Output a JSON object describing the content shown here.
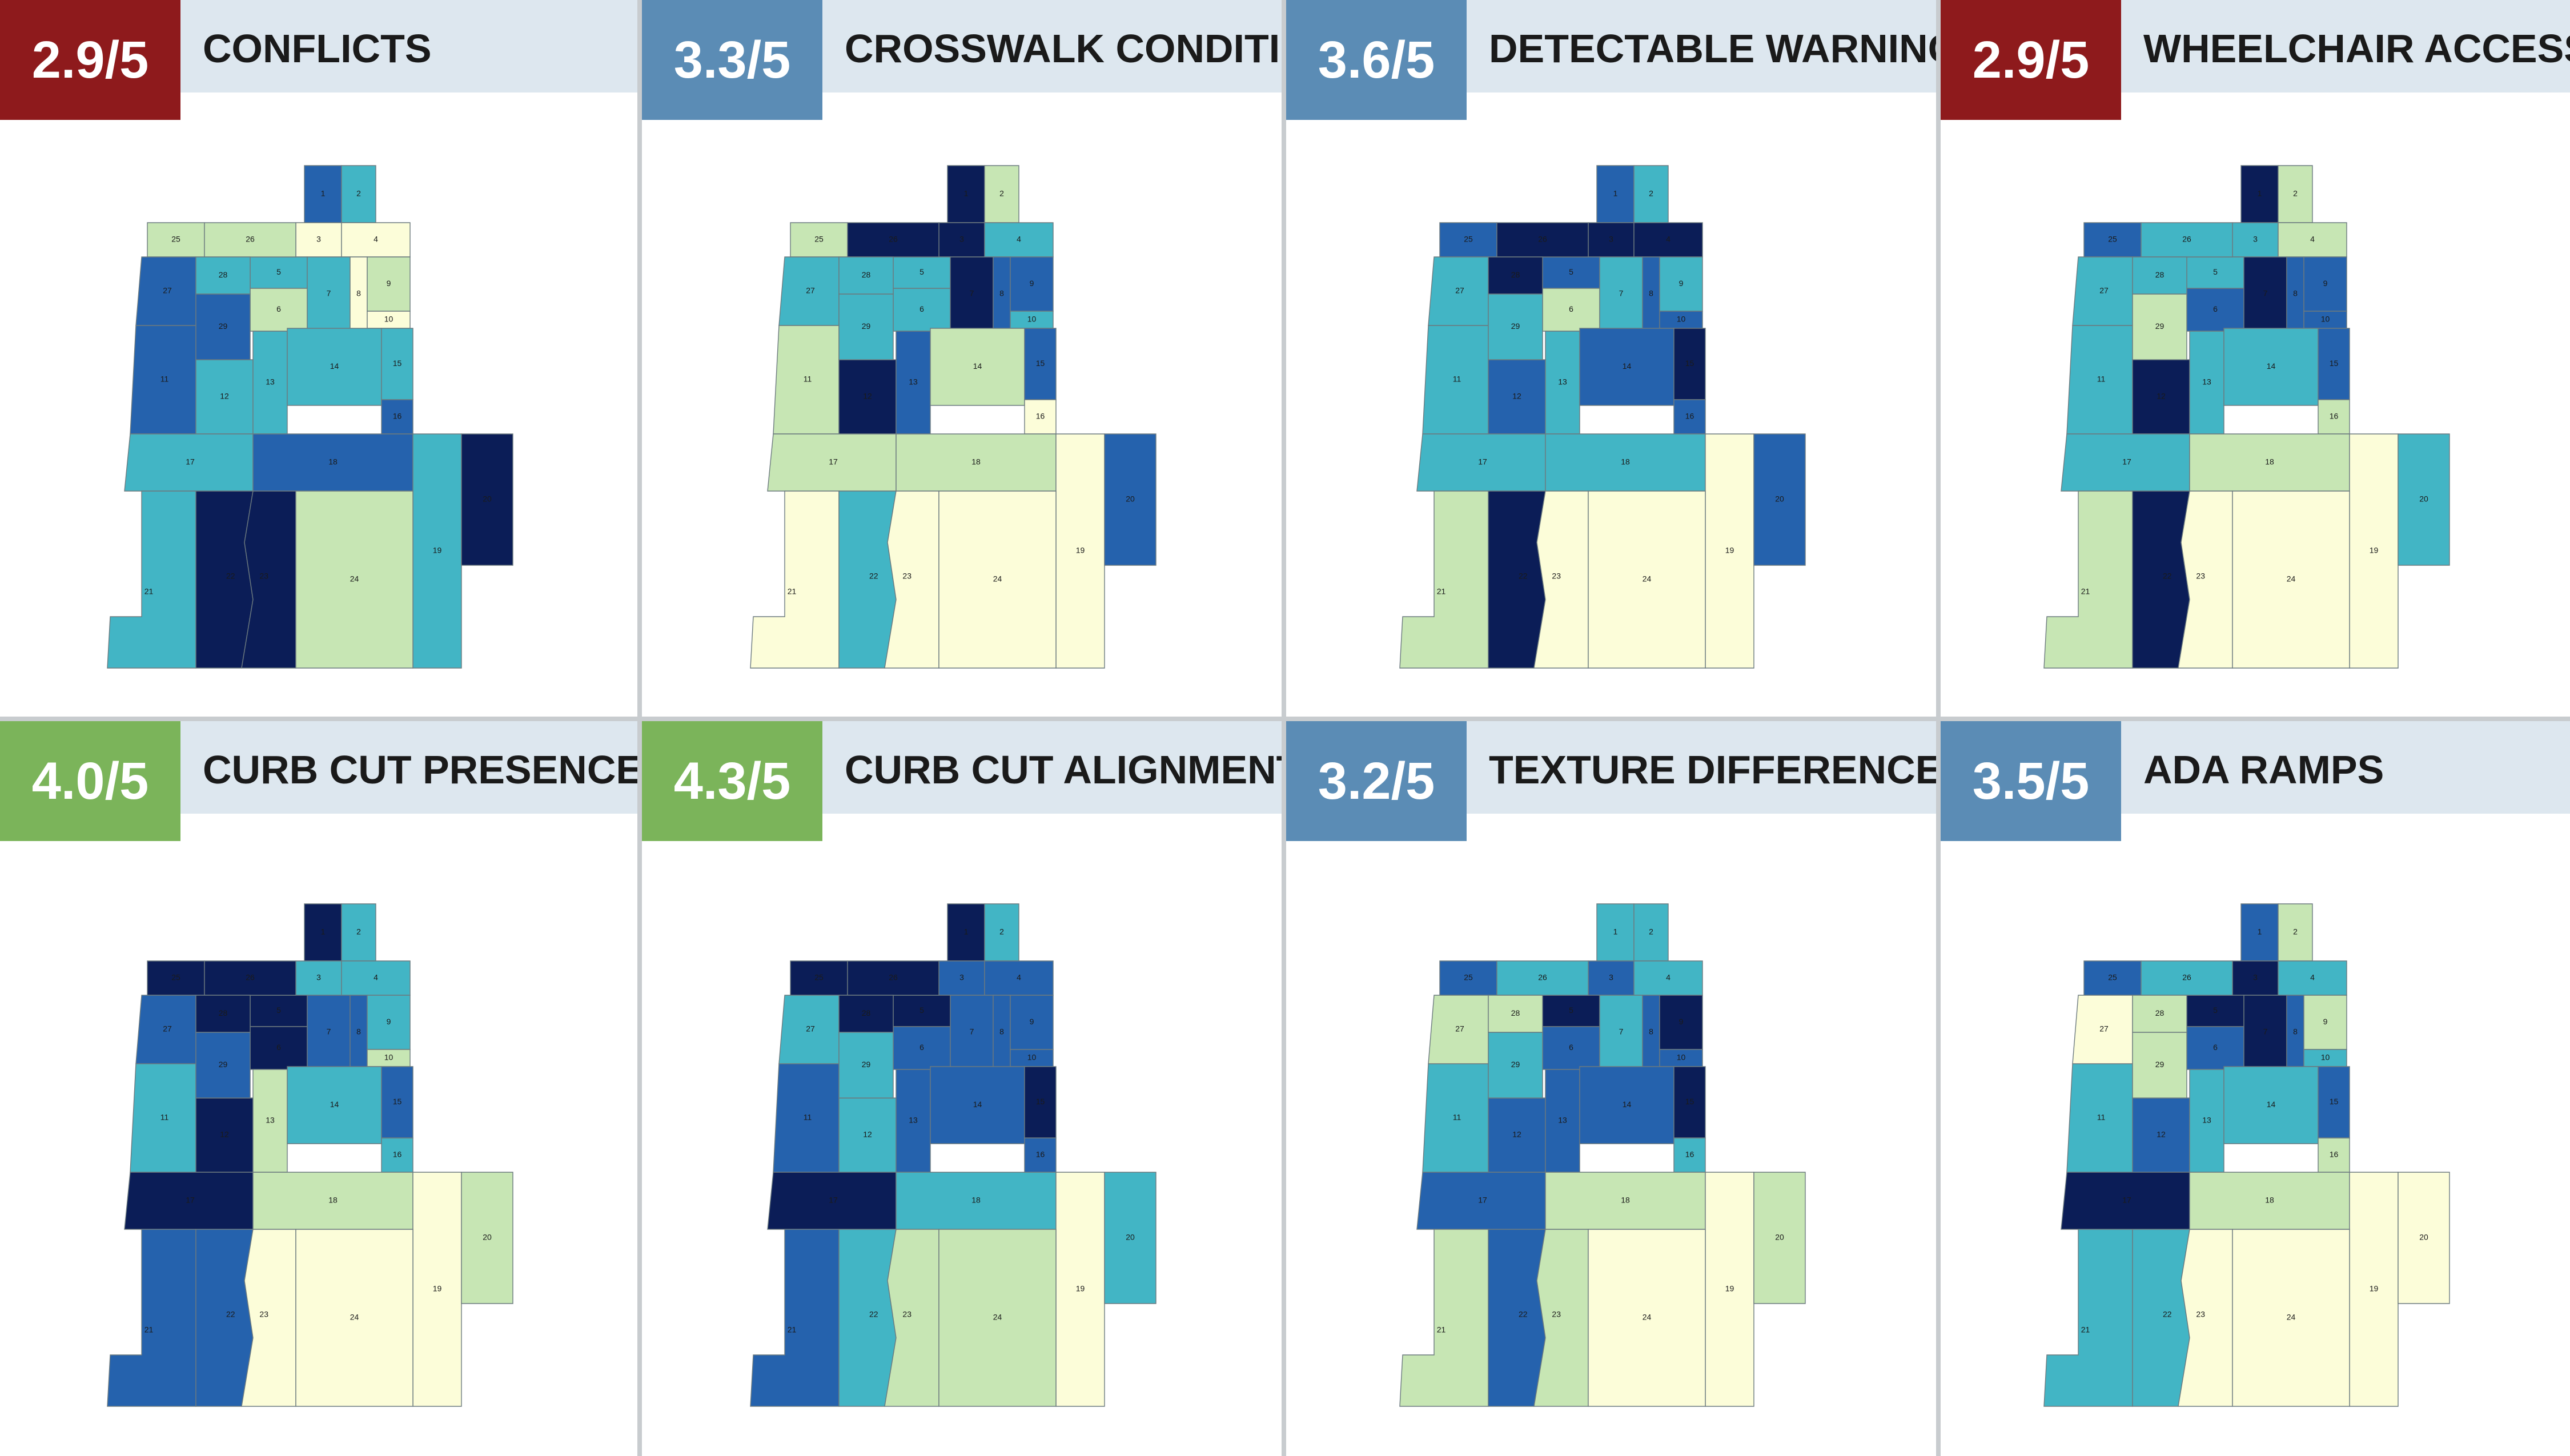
{
  "colors": {
    "very_high": "#0b1d57",
    "high": "#2562ad",
    "medium": "#42b5c5",
    "low": "#c7e6b4",
    "very_low": "#fcfdd9",
    "badge_red": "#8e1a1c",
    "badge_blue": "#5b8cb5",
    "badge_green": "#7bb45a",
    "header_bg": "#dde7ef"
  },
  "zones": [
    "1",
    "2",
    "3",
    "4",
    "5",
    "6",
    "7",
    "8",
    "9",
    "10",
    "11",
    "12",
    "13",
    "14",
    "15",
    "16",
    "17",
    "18",
    "19",
    "20",
    "21",
    "22",
    "23",
    "24",
    "25",
    "26",
    "27",
    "28",
    "29"
  ],
  "panels": [
    {
      "title": "CONFLICTS",
      "score": "2.9/5",
      "badge_color": "badge_red",
      "fills": [
        "high",
        "medium",
        "very_low",
        "very_low",
        "medium",
        "low",
        "medium",
        "very_low",
        "low",
        "very_low",
        "high",
        "medium",
        "medium",
        "medium",
        "medium",
        "high",
        "medium",
        "high",
        "medium",
        "very_high",
        "medium",
        "very_high",
        "very_high",
        "low",
        "low",
        "low",
        "high",
        "medium",
        "high"
      ]
    },
    {
      "title": "CROSSWALK CONDITION",
      "score": "3.3/5",
      "badge_color": "badge_blue",
      "fills": [
        "very_high",
        "low",
        "very_high",
        "medium",
        "medium",
        "medium",
        "very_high",
        "high",
        "high",
        "medium",
        "low",
        "very_high",
        "high",
        "low",
        "high",
        "very_low",
        "low",
        "low",
        "very_low",
        "high",
        "very_low",
        "medium",
        "very_low",
        "very_low",
        "low",
        "very_high",
        "medium",
        "medium",
        "medium"
      ]
    },
    {
      "title": "DETECTABLE WARNING",
      "score": "3.6/5",
      "badge_color": "badge_blue",
      "fills": [
        "high",
        "medium",
        "very_high",
        "very_high",
        "high",
        "low",
        "medium",
        "high",
        "medium",
        "high",
        "medium",
        "high",
        "medium",
        "high",
        "very_high",
        "high",
        "medium",
        "medium",
        "very_low",
        "high",
        "low",
        "very_high",
        "very_low",
        "very_low",
        "high",
        "very_high",
        "medium",
        "very_high",
        "medium"
      ]
    },
    {
      "title": "WHEELCHAIR ACCESS",
      "score": "2.9/5",
      "badge_color": "badge_red",
      "fills": [
        "very_high",
        "low",
        "medium",
        "low",
        "medium",
        "high",
        "very_high",
        "high",
        "high",
        "high",
        "medium",
        "very_high",
        "medium",
        "medium",
        "high",
        "low",
        "medium",
        "low",
        "very_low",
        "medium",
        "low",
        "very_high",
        "very_low",
        "very_low",
        "high",
        "medium",
        "medium",
        "medium",
        "low"
      ]
    },
    {
      "title": "CURB CUT PRESENCE",
      "score": "4.0/5",
      "badge_color": "badge_green",
      "fills": [
        "very_high",
        "medium",
        "medium",
        "medium",
        "very_high",
        "very_high",
        "high",
        "high",
        "medium",
        "low",
        "medium",
        "very_high",
        "low",
        "medium",
        "high",
        "medium",
        "very_high",
        "low",
        "very_low",
        "low",
        "high",
        "high",
        "very_low",
        "very_low",
        "very_high",
        "very_high",
        "high",
        "very_high",
        "high"
      ]
    },
    {
      "title": "CURB CUT ALIGNMENT",
      "score": "4.3/5",
      "badge_color": "badge_green",
      "fills": [
        "very_high",
        "medium",
        "high",
        "high",
        "very_high",
        "high",
        "high",
        "high",
        "high",
        "high",
        "high",
        "medium",
        "high",
        "high",
        "very_high",
        "high",
        "very_high",
        "medium",
        "very_low",
        "medium",
        "high",
        "medium",
        "low",
        "low",
        "very_high",
        "very_high",
        "medium",
        "very_high",
        "medium"
      ]
    },
    {
      "title": "TEXTURE DIFFERENCES",
      "score": "3.2/5",
      "badge_color": "badge_blue",
      "fills": [
        "medium",
        "medium",
        "high",
        "medium",
        "very_high",
        "high",
        "medium",
        "high",
        "very_high",
        "high",
        "medium",
        "high",
        "high",
        "high",
        "very_high",
        "medium",
        "high",
        "low",
        "very_low",
        "low",
        "low",
        "high",
        "low",
        "very_low",
        "high",
        "medium",
        "low",
        "low",
        "medium"
      ]
    },
    {
      "title": "ADA RAMPS",
      "score": "3.5/5",
      "badge_color": "badge_blue",
      "fills": [
        "high",
        "low",
        "very_high",
        "medium",
        "very_high",
        "high",
        "very_high",
        "high",
        "low",
        "medium",
        "medium",
        "high",
        "medium",
        "medium",
        "high",
        "low",
        "very_high",
        "low",
        "very_low",
        "very_low",
        "medium",
        "medium",
        "very_low",
        "very_low",
        "high",
        "medium",
        "very_low",
        "low",
        "low"
      ]
    }
  ]
}
